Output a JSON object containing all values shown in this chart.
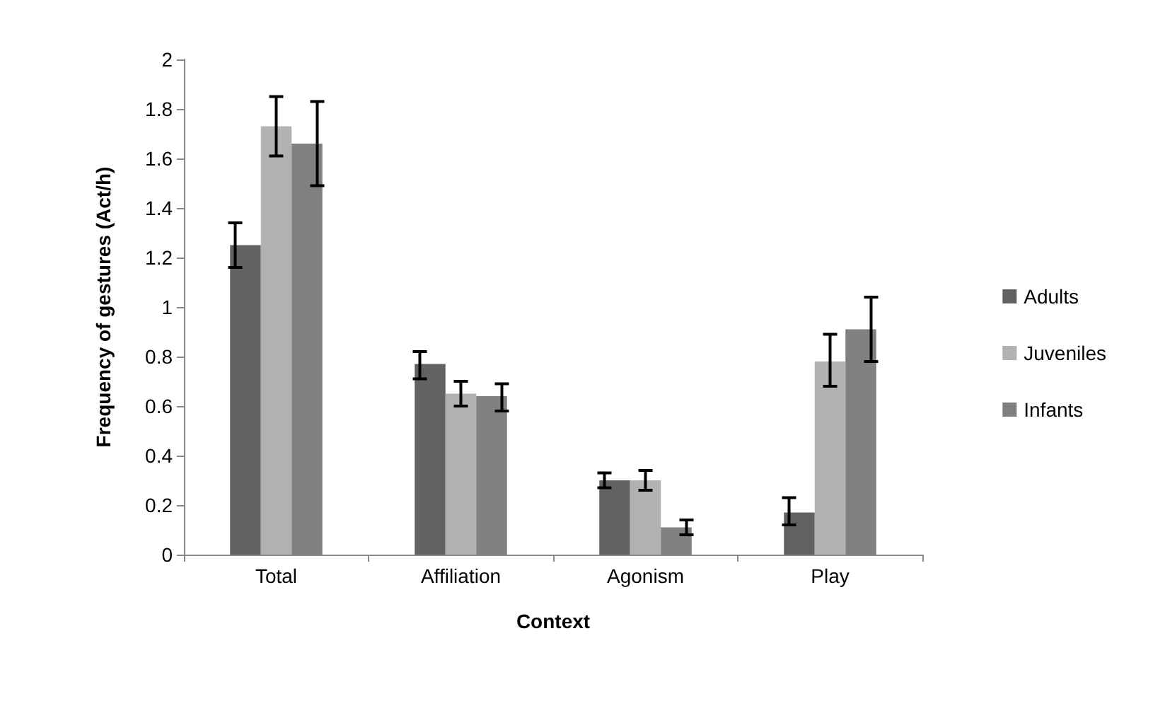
{
  "chart_data": {
    "type": "bar",
    "xlabel": "Context",
    "ylabel": "Frequency of gestures (Act/h)",
    "categories": [
      "Total",
      "Affiliation",
      "Agonism",
      "Play"
    ],
    "series": [
      {
        "name": "Adults",
        "color": "#626262",
        "values": [
          1.25,
          0.77,
          0.3,
          0.17
        ],
        "errors": [
          [
            1.16,
            1.34
          ],
          [
            0.71,
            0.82
          ],
          [
            0.27,
            0.33
          ],
          [
            0.12,
            0.23
          ]
        ]
      },
      {
        "name": "Juveniles",
        "color": "#b2b2b2",
        "values": [
          1.73,
          0.65,
          0.3,
          0.78
        ],
        "errors": [
          [
            1.61,
            1.85
          ],
          [
            0.6,
            0.7
          ],
          [
            0.26,
            0.34
          ],
          [
            0.68,
            0.89
          ]
        ]
      },
      {
        "name": "Infants",
        "color": "#808080",
        "values": [
          1.66,
          0.64,
          0.11,
          0.91
        ],
        "errors": [
          [
            1.49,
            1.83
          ],
          [
            0.58,
            0.69
          ],
          [
            0.08,
            0.14
          ],
          [
            0.78,
            1.04
          ]
        ]
      }
    ],
    "ylim": [
      0,
      2
    ],
    "yticks": [
      0,
      0.2,
      0.4,
      0.6,
      0.8,
      1,
      1.2,
      1.4,
      1.6,
      1.8,
      2
    ],
    "grid": false,
    "legend": "right"
  }
}
